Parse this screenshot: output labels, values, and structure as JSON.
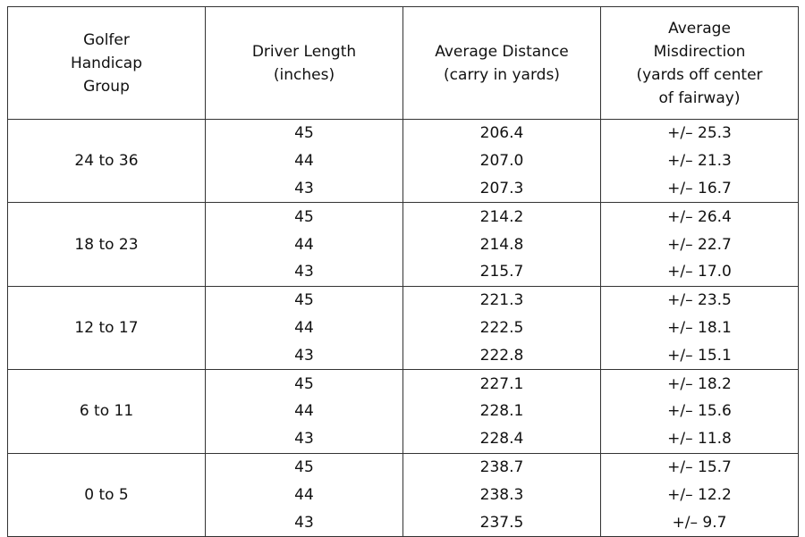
{
  "table": {
    "header": [
      [
        "Golfer",
        "Handicap",
        "Group"
      ],
      [
        "Driver Length",
        "(inches)"
      ],
      [
        "Average Distance",
        "(carry in yards)"
      ],
      [
        "Average",
        "Misdirection",
        "(yards off center",
        "of fairway)"
      ]
    ],
    "groups": [
      {
        "handicap": "24 to 36",
        "rows": [
          [
            "45",
            "206.4",
            "+/– 25.3"
          ],
          [
            "44",
            "207.0",
            "+/– 21.3"
          ],
          [
            "43",
            "207.3",
            "+/– 16.7"
          ]
        ]
      },
      {
        "handicap": "18 to 23",
        "rows": [
          [
            "45",
            "214.2",
            "+/– 26.4"
          ],
          [
            "44",
            "214.8",
            "+/– 22.7"
          ],
          [
            "43",
            "215.7",
            "+/– 17.0"
          ]
        ]
      },
      {
        "handicap": "12 to 17",
        "rows": [
          [
            "45",
            "221.3",
            "+/– 23.5"
          ],
          [
            "44",
            "222.5",
            "+/– 18.1"
          ],
          [
            "43",
            "222.8",
            "+/– 15.1"
          ]
        ]
      },
      {
        "handicap": "6 to 11",
        "rows": [
          [
            "45",
            "227.1",
            "+/– 18.2"
          ],
          [
            "44",
            "228.1",
            "+/– 15.6"
          ],
          [
            "43",
            "228.4",
            "+/– 11.8"
          ]
        ]
      },
      {
        "handicap": "0 to 5",
        "rows": [
          [
            "45",
            "238.7",
            "+/– 15.7"
          ],
          [
            "44",
            "238.3",
            "+/– 12.2"
          ],
          [
            "43",
            "237.5",
            "+/– 9.7"
          ]
        ]
      }
    ]
  }
}
